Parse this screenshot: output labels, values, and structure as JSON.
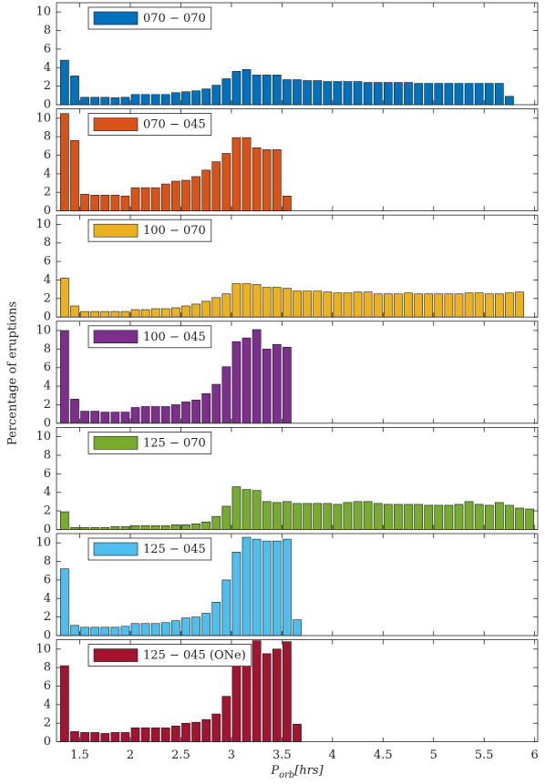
{
  "chart_data": {
    "type": "bar",
    "ylabel": "Percentage of eruptions",
    "xlabel": [
      "P",
      "orb",
      "[hrs]"
    ],
    "x": [
      1.35,
      1.45,
      1.55,
      1.65,
      1.75,
      1.85,
      1.95,
      2.05,
      2.15,
      2.25,
      2.35,
      2.45,
      2.55,
      2.65,
      2.75,
      2.85,
      2.95,
      3.05,
      3.15,
      3.25,
      3.35,
      3.45,
      3.55,
      3.65,
      3.75,
      3.85,
      3.95,
      4.05,
      4.15,
      4.25,
      4.35,
      4.45,
      4.55,
      4.65,
      4.75,
      4.85,
      4.95,
      5.05,
      5.15,
      5.25,
      5.35,
      5.45,
      5.55,
      5.65,
      5.75,
      5.85,
      5.95
    ],
    "xlim": [
      1.27,
      6.03
    ],
    "xticks": [
      1.5,
      2,
      2.5,
      3,
      3.5,
      4,
      4.5,
      5,
      5.5,
      6
    ],
    "ylim": [
      0,
      11
    ],
    "yticks": [
      0,
      2,
      4,
      6,
      8,
      10
    ],
    "series": [
      {
        "name": "070 − 070",
        "color": "#0072BD",
        "values": [
          4.8,
          3.1,
          0.8,
          0.8,
          0.8,
          0.75,
          0.8,
          1.1,
          1.1,
          1.1,
          1.1,
          1.3,
          1.4,
          1.5,
          1.7,
          2.1,
          2.8,
          3.6,
          3.8,
          3.2,
          3.2,
          3.2,
          2.7,
          2.7,
          2.6,
          2.6,
          2.5,
          2.5,
          2.5,
          2.5,
          2.4,
          2.4,
          2.4,
          2.4,
          2.4,
          2.3,
          2.3,
          2.3,
          2.3,
          2.3,
          2.3,
          2.3,
          2.3,
          2.3,
          0.9,
          null,
          null
        ]
      },
      {
        "name": "070 − 045",
        "color": "#D95319",
        "values": [
          10.5,
          7.6,
          1.8,
          1.7,
          1.7,
          1.7,
          1.6,
          2.5,
          2.5,
          2.5,
          2.9,
          3.2,
          3.3,
          3.7,
          4.4,
          5.3,
          6.2,
          7.9,
          7.9,
          6.8,
          6.6,
          6.6,
          1.6,
          null,
          null,
          null,
          null,
          null,
          null,
          null,
          null,
          null,
          null,
          null,
          null,
          null,
          null,
          null,
          null,
          null,
          null,
          null,
          null,
          null,
          null,
          null,
          null
        ]
      },
      {
        "name": "100 − 070",
        "color": "#EDB120",
        "values": [
          4.2,
          1.2,
          0.6,
          0.6,
          0.6,
          0.6,
          0.6,
          0.8,
          0.8,
          0.9,
          0.9,
          1.0,
          1.2,
          1.4,
          1.7,
          2.1,
          2.5,
          3.6,
          3.6,
          3.5,
          3.2,
          3.2,
          3.1,
          2.8,
          2.8,
          2.8,
          2.7,
          2.6,
          2.6,
          2.7,
          2.7,
          2.5,
          2.5,
          2.5,
          2.6,
          2.5,
          2.5,
          2.5,
          2.5,
          2.5,
          2.6,
          2.6,
          2.5,
          2.5,
          2.6,
          2.7,
          null
        ]
      },
      {
        "name": "100 − 045",
        "color": "#7E2F8E",
        "values": [
          10,
          2.6,
          1.3,
          1.3,
          1.2,
          1.2,
          1.2,
          1.7,
          1.8,
          1.8,
          1.8,
          2.0,
          2.3,
          2.5,
          3.2,
          4.2,
          6.1,
          8.8,
          9.2,
          10.1,
          8.0,
          8.5,
          8.2,
          null,
          null,
          null,
          null,
          null,
          null,
          null,
          null,
          null,
          null,
          null,
          null,
          null,
          null,
          null,
          null,
          null,
          null,
          null,
          null,
          null,
          null,
          null,
          null
        ]
      },
      {
        "name": "125 − 070",
        "color": "#77AC30",
        "values": [
          1.9,
          0.2,
          0.2,
          0.2,
          0.2,
          0.3,
          0.3,
          0.4,
          0.4,
          0.4,
          0.4,
          0.5,
          0.5,
          0.6,
          0.8,
          1.4,
          2.5,
          4.6,
          4.3,
          4.2,
          3.0,
          2.9,
          3.0,
          2.8,
          2.8,
          2.8,
          2.8,
          2.7,
          2.9,
          3.0,
          3.0,
          2.8,
          2.7,
          2.7,
          2.7,
          2.7,
          2.6,
          2.6,
          2.6,
          2.7,
          3.0,
          2.7,
          2.6,
          2.9,
          2.6,
          2.3,
          2.2
        ]
      },
      {
        "name": "125 − 045",
        "color": "#4DBEEE",
        "values": [
          7.2,
          1.1,
          0.9,
          0.9,
          0.9,
          0.9,
          1.0,
          1.3,
          1.3,
          1.3,
          1.4,
          1.6,
          1.9,
          2.0,
          2.4,
          3.6,
          6.0,
          9.0,
          10.6,
          10.4,
          10.2,
          10.2,
          10.4,
          1.7,
          null,
          null,
          null,
          null,
          null,
          null,
          null,
          null,
          null,
          null,
          null,
          null,
          null,
          null,
          null,
          null,
          null,
          null,
          null,
          null,
          null,
          null,
          null
        ]
      },
      {
        "name": "125 − 045 (ONe)",
        "color": "#A2142F",
        "values": [
          8.2,
          1.1,
          1.0,
          1.0,
          0.9,
          1.0,
          1.0,
          1.5,
          1.5,
          1.5,
          1.5,
          1.7,
          2.0,
          2.1,
          2.4,
          3.0,
          4.9,
          9.3,
          10.4,
          10.9,
          9.5,
          10.0,
          10.8,
          1.9,
          null,
          null,
          null,
          null,
          null,
          null,
          null,
          null,
          null,
          null,
          null,
          null,
          null,
          null,
          null,
          null,
          null,
          null,
          null,
          null,
          null,
          null,
          null
        ]
      }
    ]
  }
}
